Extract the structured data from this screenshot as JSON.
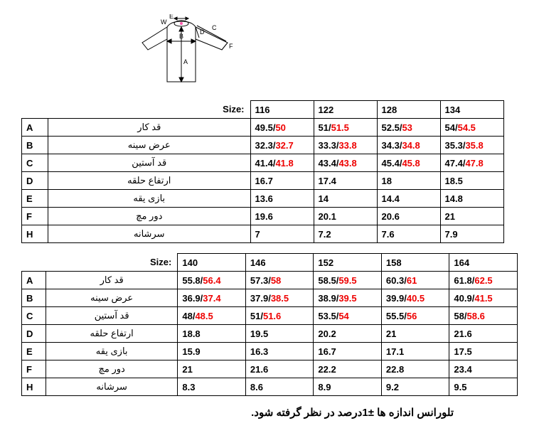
{
  "diagram_labels": [
    "A",
    "B",
    "C",
    "D",
    "E",
    "F",
    "W"
  ],
  "size_label": "Size:",
  "table1": {
    "name_col_width": 270,
    "val_col_width": 76,
    "sizes": [
      "116",
      "122",
      "128",
      "134"
    ],
    "rows": [
      {
        "letter": "A",
        "name": "قد کار",
        "vals": [
          [
            "49.5",
            "50"
          ],
          [
            "51",
            "51.5"
          ],
          [
            "52.5",
            "53"
          ],
          [
            "54",
            "54.5"
          ]
        ]
      },
      {
        "letter": "B",
        "name": "عرض سینه",
        "vals": [
          [
            "32.3",
            "32.7"
          ],
          [
            "33.3",
            "33.8"
          ],
          [
            "34.3",
            "34.8"
          ],
          [
            "35.3",
            "35.8"
          ]
        ]
      },
      {
        "letter": "C",
        "name": "قد آستین",
        "vals": [
          [
            "41.4",
            "41.8"
          ],
          [
            "43.4",
            "43.8"
          ],
          [
            "45.4",
            "45.8"
          ],
          [
            "47.4",
            "47.8"
          ]
        ]
      },
      {
        "letter": "D",
        "name": "ارتفاع حلقه",
        "vals": [
          [
            "16.7"
          ],
          [
            "17.4"
          ],
          [
            "18"
          ],
          [
            "18.5"
          ]
        ]
      },
      {
        "letter": "E",
        "name": "بازی یقه",
        "vals": [
          [
            "13.6"
          ],
          [
            "14"
          ],
          [
            "14.4"
          ],
          [
            "14.8"
          ]
        ]
      },
      {
        "letter": "F",
        "name": "دور مچ",
        "vals": [
          [
            "19.6"
          ],
          [
            "20.1"
          ],
          [
            "20.6"
          ],
          [
            "21"
          ]
        ]
      },
      {
        "letter": "H",
        "name": "سرشانه",
        "vals": [
          [
            "7"
          ],
          [
            "7.2"
          ],
          [
            "7.6"
          ],
          [
            "7.9"
          ]
        ]
      }
    ]
  },
  "table2": {
    "name_col_width": 205,
    "val_col_width": 90,
    "sizes": [
      "140",
      "146",
      "152",
      "158",
      "164"
    ],
    "rows": [
      {
        "letter": "A",
        "name": "قد کار",
        "vals": [
          [
            "55.8",
            "56.4"
          ],
          [
            "57.3",
            "58"
          ],
          [
            "58.5",
            "59.5"
          ],
          [
            "60.3",
            "61"
          ],
          [
            "61.8",
            "62.5"
          ]
        ]
      },
      {
        "letter": "B",
        "name": "عرض سینه",
        "vals": [
          [
            "36.9",
            "37.4"
          ],
          [
            "37.9",
            "38.5"
          ],
          [
            "38.9",
            "39.5"
          ],
          [
            "39.9",
            "40.5"
          ],
          [
            "40.9",
            "41.5"
          ]
        ]
      },
      {
        "letter": "C",
        "name": "قد آستین",
        "vals": [
          [
            "48",
            "48.5"
          ],
          [
            "51",
            "51.6"
          ],
          [
            "53.5",
            "54"
          ],
          [
            "55.5",
            "56"
          ],
          [
            "58",
            "58.6"
          ]
        ]
      },
      {
        "letter": "D",
        "name": "ارتفاع حلقه",
        "vals": [
          [
            "18.8"
          ],
          [
            "19.5"
          ],
          [
            "20.2"
          ],
          [
            "21"
          ],
          [
            "21.6"
          ]
        ]
      },
      {
        "letter": "E",
        "name": "بازی یقه",
        "vals": [
          [
            "15.9"
          ],
          [
            "16.3"
          ],
          [
            "16.7"
          ],
          [
            "17.1"
          ],
          [
            "17.5"
          ]
        ]
      },
      {
        "letter": "F",
        "name": "دور مچ",
        "vals": [
          [
            "21"
          ],
          [
            "21.6"
          ],
          [
            "22.2"
          ],
          [
            "22.8"
          ],
          [
            "23.4"
          ]
        ]
      },
      {
        "letter": "H",
        "name": "سرشانه",
        "vals": [
          [
            "8.3"
          ],
          [
            "8.6"
          ],
          [
            "8.9"
          ],
          [
            "9.2"
          ],
          [
            "9.5"
          ]
        ]
      }
    ]
  },
  "note": "تلورانس اندازه ها  ±1درصد در نظر گرفته شود."
}
